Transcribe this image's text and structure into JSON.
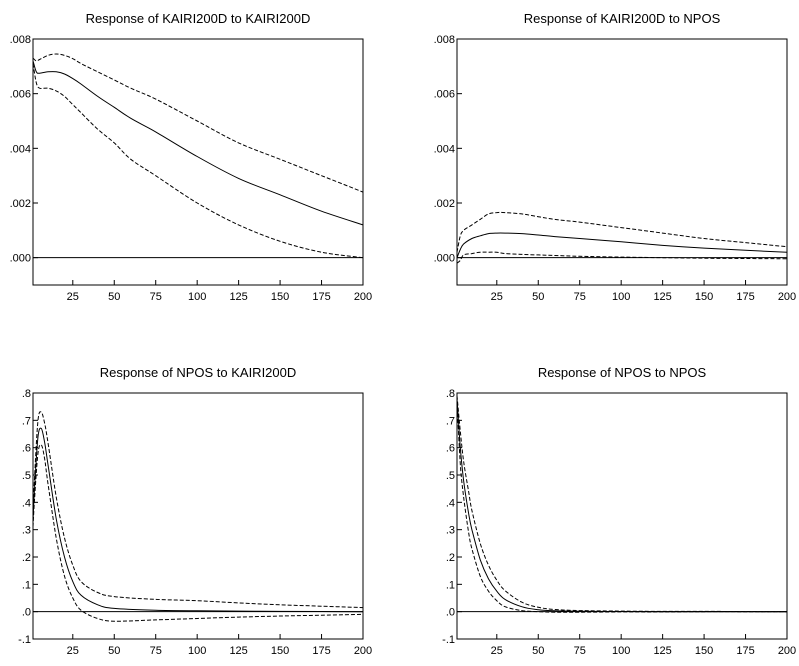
{
  "chart_data": [
    {
      "type": "line",
      "title": "Response of KAIRI200D to KAIRI200D",
      "xlabel": "",
      "ylabel": "",
      "xlim": [
        1,
        200
      ],
      "ylim": [
        -0.001,
        0.008
      ],
      "xticks": [
        25,
        50,
        75,
        100,
        125,
        150,
        175,
        200
      ],
      "xtick_labels": [
        "25",
        "50",
        "75",
        "100",
        "125",
        "150",
        "175",
        "200"
      ],
      "yticks": [
        0.0,
        0.002,
        0.004,
        0.006,
        0.008
      ],
      "ytick_labels": [
        ".000",
        ".002",
        ".004",
        ".006",
        ".008"
      ],
      "zero_line": true,
      "grid": false,
      "x": [
        1,
        3,
        5,
        10,
        15,
        20,
        25,
        30,
        40,
        50,
        60,
        75,
        100,
        125,
        150,
        175,
        200
      ],
      "series": [
        {
          "role": "response",
          "style": "solid",
          "values": [
            0.0072,
            0.0068,
            0.00675,
            0.0068,
            0.0068,
            0.00672,
            0.00655,
            0.00635,
            0.0059,
            0.0055,
            0.0051,
            0.0046,
            0.0037,
            0.0029,
            0.0023,
            0.0017,
            0.0012
          ]
        },
        {
          "role": "upper band",
          "style": "dashed",
          "values": [
            0.0073,
            0.0072,
            0.00725,
            0.0074,
            0.00745,
            0.0074,
            0.00728,
            0.0071,
            0.0068,
            0.0065,
            0.0062,
            0.0058,
            0.005,
            0.0042,
            0.0036,
            0.003,
            0.0024
          ]
        },
        {
          "role": "lower band",
          "style": "dashed",
          "values": [
            0.0071,
            0.0064,
            0.0062,
            0.0062,
            0.0061,
            0.0059,
            0.0056,
            0.0053,
            0.0047,
            0.0042,
            0.0036,
            0.003,
            0.002,
            0.0012,
            0.0006,
            0.0002,
            0.0
          ]
        }
      ]
    },
    {
      "type": "line",
      "title": "Response of KAIRI200D to NPOS",
      "xlabel": "",
      "ylabel": "",
      "xlim": [
        1,
        200
      ],
      "ylim": [
        -0.001,
        0.008
      ],
      "xticks": [
        25,
        50,
        75,
        100,
        125,
        150,
        175,
        200
      ],
      "xtick_labels": [
        "25",
        "50",
        "75",
        "100",
        "125",
        "150",
        "175",
        "200"
      ],
      "yticks": [
        0.0,
        0.002,
        0.004,
        0.006,
        0.008
      ],
      "ytick_labels": [
        ".000",
        ".002",
        ".004",
        ".006",
        ".008"
      ],
      "zero_line": true,
      "grid": false,
      "x": [
        1,
        3,
        5,
        10,
        15,
        20,
        25,
        30,
        40,
        50,
        60,
        75,
        100,
        125,
        150,
        175,
        200
      ],
      "series": [
        {
          "role": "response",
          "style": "solid",
          "values": [
            0.0,
            0.0003,
            0.0005,
            0.0007,
            0.0008,
            0.00088,
            0.0009,
            0.0009,
            0.00088,
            0.00083,
            0.00077,
            0.0007,
            0.00058,
            0.00045,
            0.00035,
            0.00027,
            0.0002
          ]
        },
        {
          "role": "upper band",
          "style": "dashed",
          "values": [
            0.0002,
            0.0008,
            0.001,
            0.0012,
            0.0014,
            0.0016,
            0.00165,
            0.00165,
            0.0016,
            0.0015,
            0.0014,
            0.0013,
            0.0011,
            0.0009,
            0.0007,
            0.00055,
            0.0004
          ]
        },
        {
          "role": "lower band",
          "style": "dashed",
          "values": [
            -0.0002,
            -0.0001,
            0.0001,
            0.00015,
            0.0002,
            0.0002,
            0.0002,
            0.00015,
            0.00012,
            0.0001,
            8e-05,
            5e-05,
            2e-05,
            0.0,
            -2e-05,
            -3e-05,
            -4e-05
          ]
        }
      ]
    },
    {
      "type": "line",
      "title": "Response of NPOS to KAIRI200D",
      "xlabel": "",
      "ylabel": "",
      "xlim": [
        1,
        200
      ],
      "ylim": [
        -0.1,
        0.8
      ],
      "xticks": [
        25,
        50,
        75,
        100,
        125,
        150,
        175,
        200
      ],
      "xtick_labels": [
        "25",
        "50",
        "75",
        "100",
        "125",
        "150",
        "175",
        "200"
      ],
      "yticks": [
        -0.1,
        0.0,
        0.1,
        0.2,
        0.3,
        0.4,
        0.5,
        0.6,
        0.7,
        0.8
      ],
      "ytick_labels": [
        "-.1",
        ".0",
        ".1",
        ".2",
        ".3",
        ".4",
        ".5",
        ".6",
        ".7",
        ".8"
      ],
      "zero_line": true,
      "grid": false,
      "x": [
        1,
        2,
        4,
        6,
        8,
        10,
        15,
        20,
        25,
        30,
        40,
        50,
        75,
        100,
        125,
        150,
        175,
        200
      ],
      "series": [
        {
          "role": "response",
          "style": "solid",
          "values": [
            0.33,
            0.46,
            0.64,
            0.67,
            0.62,
            0.54,
            0.34,
            0.2,
            0.11,
            0.06,
            0.025,
            0.012,
            0.005,
            0.003,
            0.002,
            0.001,
            0.0005,
            0.0
          ]
        },
        {
          "role": "upper band",
          "style": "dashed",
          "values": [
            0.35,
            0.5,
            0.7,
            0.73,
            0.69,
            0.62,
            0.42,
            0.27,
            0.17,
            0.11,
            0.07,
            0.055,
            0.045,
            0.04,
            0.032,
            0.025,
            0.02,
            0.015
          ]
        },
        {
          "role": "lower band",
          "style": "dashed",
          "values": [
            0.31,
            0.42,
            0.58,
            0.61,
            0.56,
            0.47,
            0.27,
            0.13,
            0.05,
            0.005,
            -0.025,
            -0.035,
            -0.03,
            -0.025,
            -0.02,
            -0.016,
            -0.013,
            -0.01
          ]
        }
      ]
    },
    {
      "type": "line",
      "title": "Response of NPOS to NPOS",
      "xlabel": "",
      "ylabel": "",
      "xlim": [
        1,
        200
      ],
      "ylim": [
        -0.1,
        0.8
      ],
      "xticks": [
        25,
        50,
        75,
        100,
        125,
        150,
        175,
        200
      ],
      "xtick_labels": [
        "25",
        "50",
        "75",
        "100",
        "125",
        "150",
        "175",
        "200"
      ],
      "yticks": [
        -0.1,
        0.0,
        0.1,
        0.2,
        0.3,
        0.4,
        0.5,
        0.6,
        0.7,
        0.8
      ],
      "ytick_labels": [
        "-.1",
        ".0",
        ".1",
        ".2",
        ".3",
        ".4",
        ".5",
        ".6",
        ".7",
        ".8"
      ],
      "zero_line": true,
      "grid": false,
      "x": [
        1,
        3,
        5,
        8,
        10,
        15,
        20,
        25,
        30,
        40,
        50,
        60,
        75,
        100,
        125,
        150,
        175,
        200
      ],
      "series": [
        {
          "role": "response",
          "style": "solid",
          "values": [
            0.78,
            0.6,
            0.48,
            0.36,
            0.3,
            0.19,
            0.12,
            0.075,
            0.045,
            0.018,
            0.007,
            0.003,
            0.0015,
            0.0005,
            0.0,
            0.0,
            0.0,
            0.0
          ]
        },
        {
          "role": "upper band",
          "style": "dashed",
          "values": [
            0.79,
            0.66,
            0.55,
            0.44,
            0.37,
            0.25,
            0.17,
            0.115,
            0.077,
            0.035,
            0.016,
            0.008,
            0.004,
            0.002,
            0.001,
            0.001,
            0.0005,
            0.0
          ]
        },
        {
          "role": "lower band",
          "style": "dashed",
          "values": [
            0.77,
            0.54,
            0.42,
            0.29,
            0.23,
            0.13,
            0.075,
            0.04,
            0.018,
            0.004,
            0.0,
            -0.002,
            -0.002,
            -0.001,
            -0.001,
            0.0,
            0.0,
            0.0
          ]
        }
      ]
    }
  ]
}
